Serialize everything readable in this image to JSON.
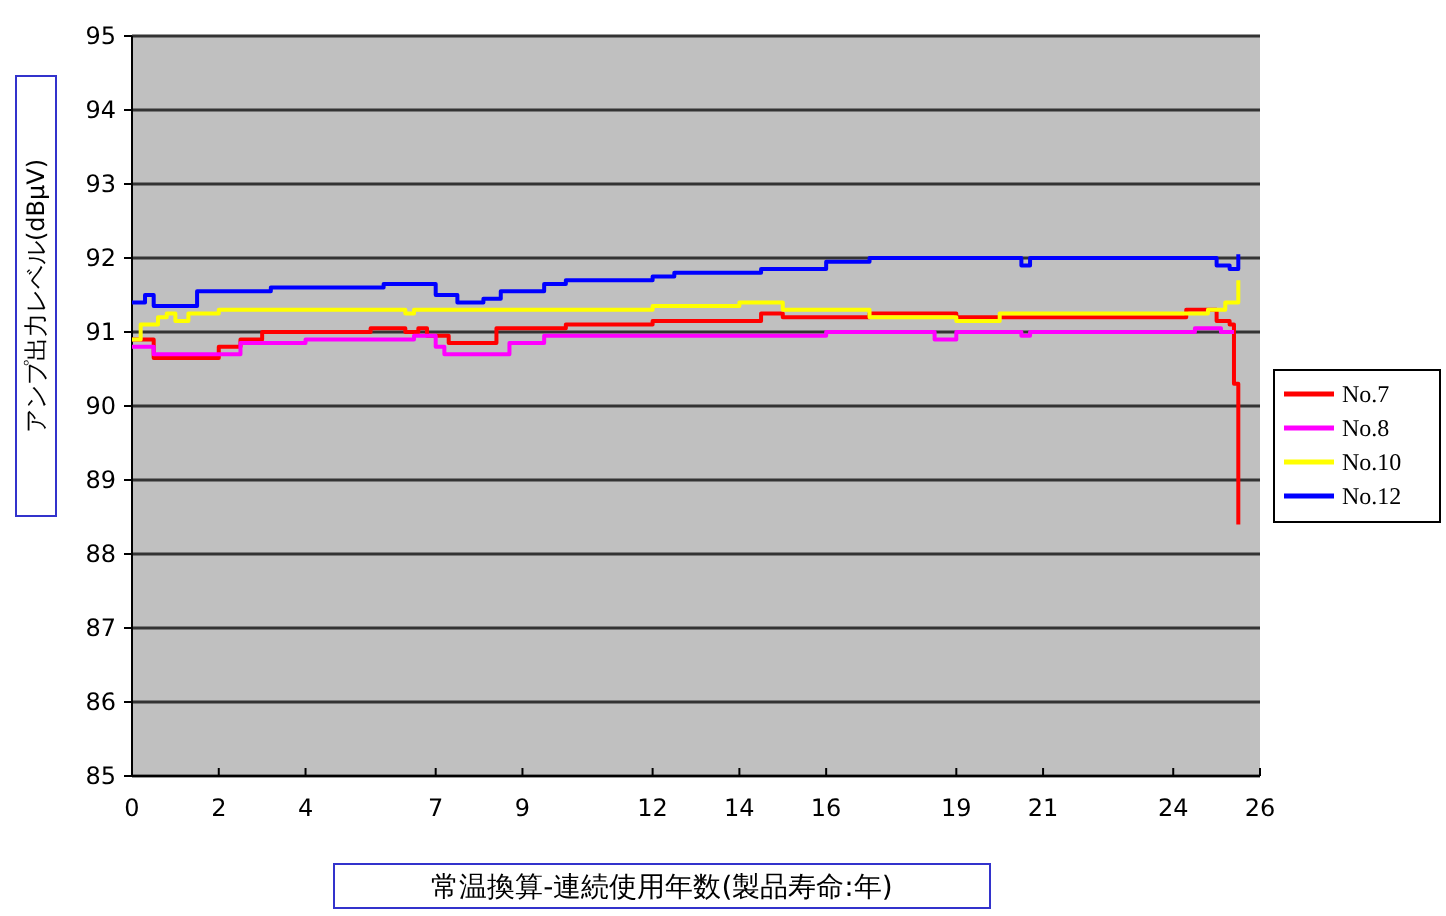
{
  "chart_data": {
    "type": "step",
    "xlabel": "常温換算-連続使用年数(製品寿命:年)",
    "ylabel": "アンプ出力レベル(dBμV)",
    "xlim": [
      0,
      26
    ],
    "ylim": [
      85,
      95
    ],
    "xticks": [
      0,
      2,
      4,
      7,
      9,
      12,
      14,
      16,
      19,
      21,
      24,
      26
    ],
    "yticks": [
      85,
      86,
      87,
      88,
      89,
      90,
      91,
      92,
      93,
      94,
      95
    ],
    "grid": "y",
    "legend": "right",
    "line_style": "solid",
    "marker": "none",
    "series": [
      {
        "name": "No.7",
        "color": "#ff0000",
        "x": [
          0,
          0.5,
          1.5,
          2.0,
          2.5,
          3.0,
          5.5,
          6.3,
          6.6,
          6.8,
          7.3,
          8.1,
          8.4,
          10,
          12,
          14.5,
          15,
          17,
          19,
          24.3,
          25.0,
          25.3,
          25.4,
          25.5
        ],
        "values": [
          90.9,
          90.65,
          90.65,
          90.8,
          90.9,
          91.0,
          91.05,
          91.0,
          91.05,
          90.95,
          90.85,
          90.85,
          91.05,
          91.1,
          91.15,
          91.25,
          91.2,
          91.25,
          91.2,
          91.3,
          91.15,
          91.1,
          90.3,
          88.4
        ]
      },
      {
        "name": "No.8",
        "color": "#ff00ff",
        "x": [
          0,
          0.5,
          2,
          2.5,
          4,
          6.5,
          7.0,
          7.2,
          8.5,
          8.7,
          9.5,
          15.5,
          16,
          18,
          18.5,
          19,
          20.3,
          20.5,
          20.7,
          24.5,
          25.1,
          25.4
        ],
        "values": [
          90.8,
          90.7,
          90.7,
          90.85,
          90.9,
          90.95,
          90.8,
          90.7,
          90.7,
          90.85,
          90.95,
          90.95,
          91.0,
          91.0,
          90.9,
          91.0,
          91.0,
          90.95,
          91.0,
          91.05,
          91.0,
          91.0
        ]
      },
      {
        "name": "No.10",
        "color": "#ffff00",
        "x": [
          0,
          0.2,
          0.6,
          0.8,
          1.0,
          1.3,
          2.0,
          5.5,
          6.3,
          6.5,
          12,
          14,
          15,
          16,
          17,
          19,
          20,
          24.8,
          25.2,
          25.5
        ],
        "values": [
          90.9,
          91.1,
          91.2,
          91.25,
          91.15,
          91.25,
          91.3,
          91.3,
          91.25,
          91.3,
          91.35,
          91.4,
          91.3,
          91.3,
          91.2,
          91.15,
          91.25,
          91.3,
          91.4,
          91.7
        ]
      },
      {
        "name": "No.12",
        "color": "#0000ff",
        "x": [
          0,
          0.3,
          0.5,
          1.0,
          1.5,
          3.2,
          5.8,
          7.0,
          7.5,
          8.1,
          8.5,
          9.5,
          10,
          12,
          12.5,
          14.5,
          16,
          17,
          20.3,
          20.5,
          20.7,
          24.5,
          25.0,
          25.3,
          25.5
        ],
        "values": [
          91.4,
          91.5,
          91.35,
          91.35,
          91.55,
          91.6,
          91.65,
          91.5,
          91.4,
          91.45,
          91.55,
          91.65,
          91.7,
          91.75,
          91.8,
          91.85,
          91.95,
          92.0,
          92.0,
          91.9,
          92.0,
          92.0,
          91.9,
          91.85,
          92.05
        ]
      }
    ]
  }
}
